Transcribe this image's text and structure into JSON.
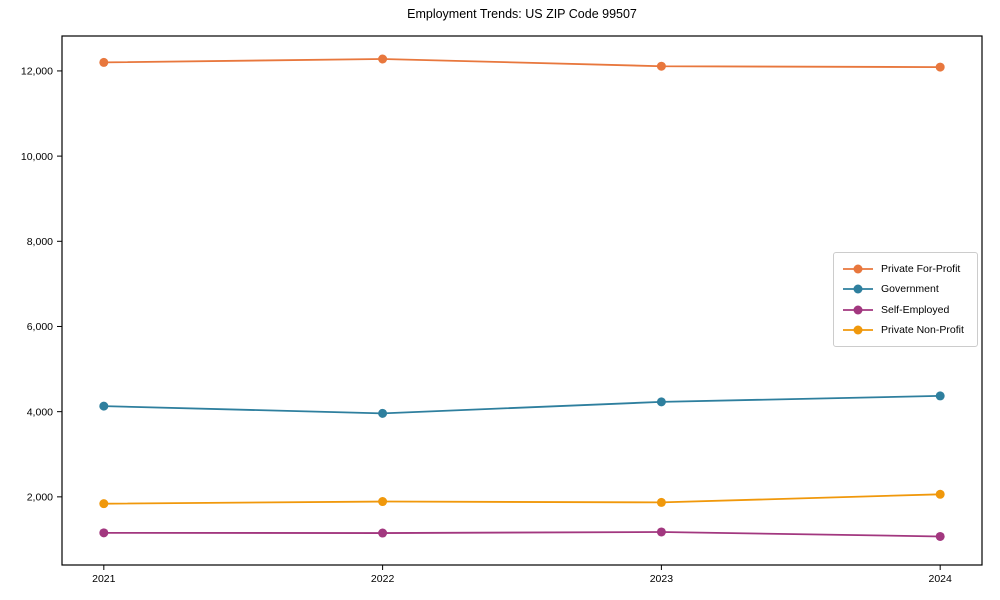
{
  "page": {
    "background_color": "#ffffff",
    "text_color": "#000000",
    "axis_color": "#000000",
    "legend_border_color": "#cccccc"
  },
  "chart_data": {
    "type": "line",
    "title": "Employment Trends: US ZIP Code 99507",
    "xlabel": "",
    "ylabel": "",
    "x": [
      2021,
      2022,
      2023,
      2024
    ],
    "xtick_labels": [
      "2021",
      "2022",
      "2023",
      "2024"
    ],
    "yticks": [
      2000,
      4000,
      6000,
      8000,
      10000,
      12000
    ],
    "ytick_labels": [
      "2,000",
      "4,000",
      "6,000",
      "8,000",
      "10,000",
      "12,000"
    ],
    "xlim": [
      2020.85,
      2024.15
    ],
    "ylim": [
      400,
      12820
    ],
    "grid": false,
    "legend_position": "right-middle",
    "marker": "circle",
    "series": [
      {
        "name": "Private For-Profit",
        "color": "#e8773d",
        "values": [
          12200,
          12280,
          12110,
          12090
        ]
      },
      {
        "name": "Government",
        "color": "#2e7f9e",
        "values": [
          4130,
          3960,
          4230,
          4370
        ]
      },
      {
        "name": "Self-Employed",
        "color": "#a2377f",
        "values": [
          1155,
          1150,
          1175,
          1070
        ]
      },
      {
        "name": "Private Non-Profit",
        "color": "#f0980b",
        "values": [
          1840,
          1890,
          1870,
          2060
        ]
      }
    ]
  }
}
